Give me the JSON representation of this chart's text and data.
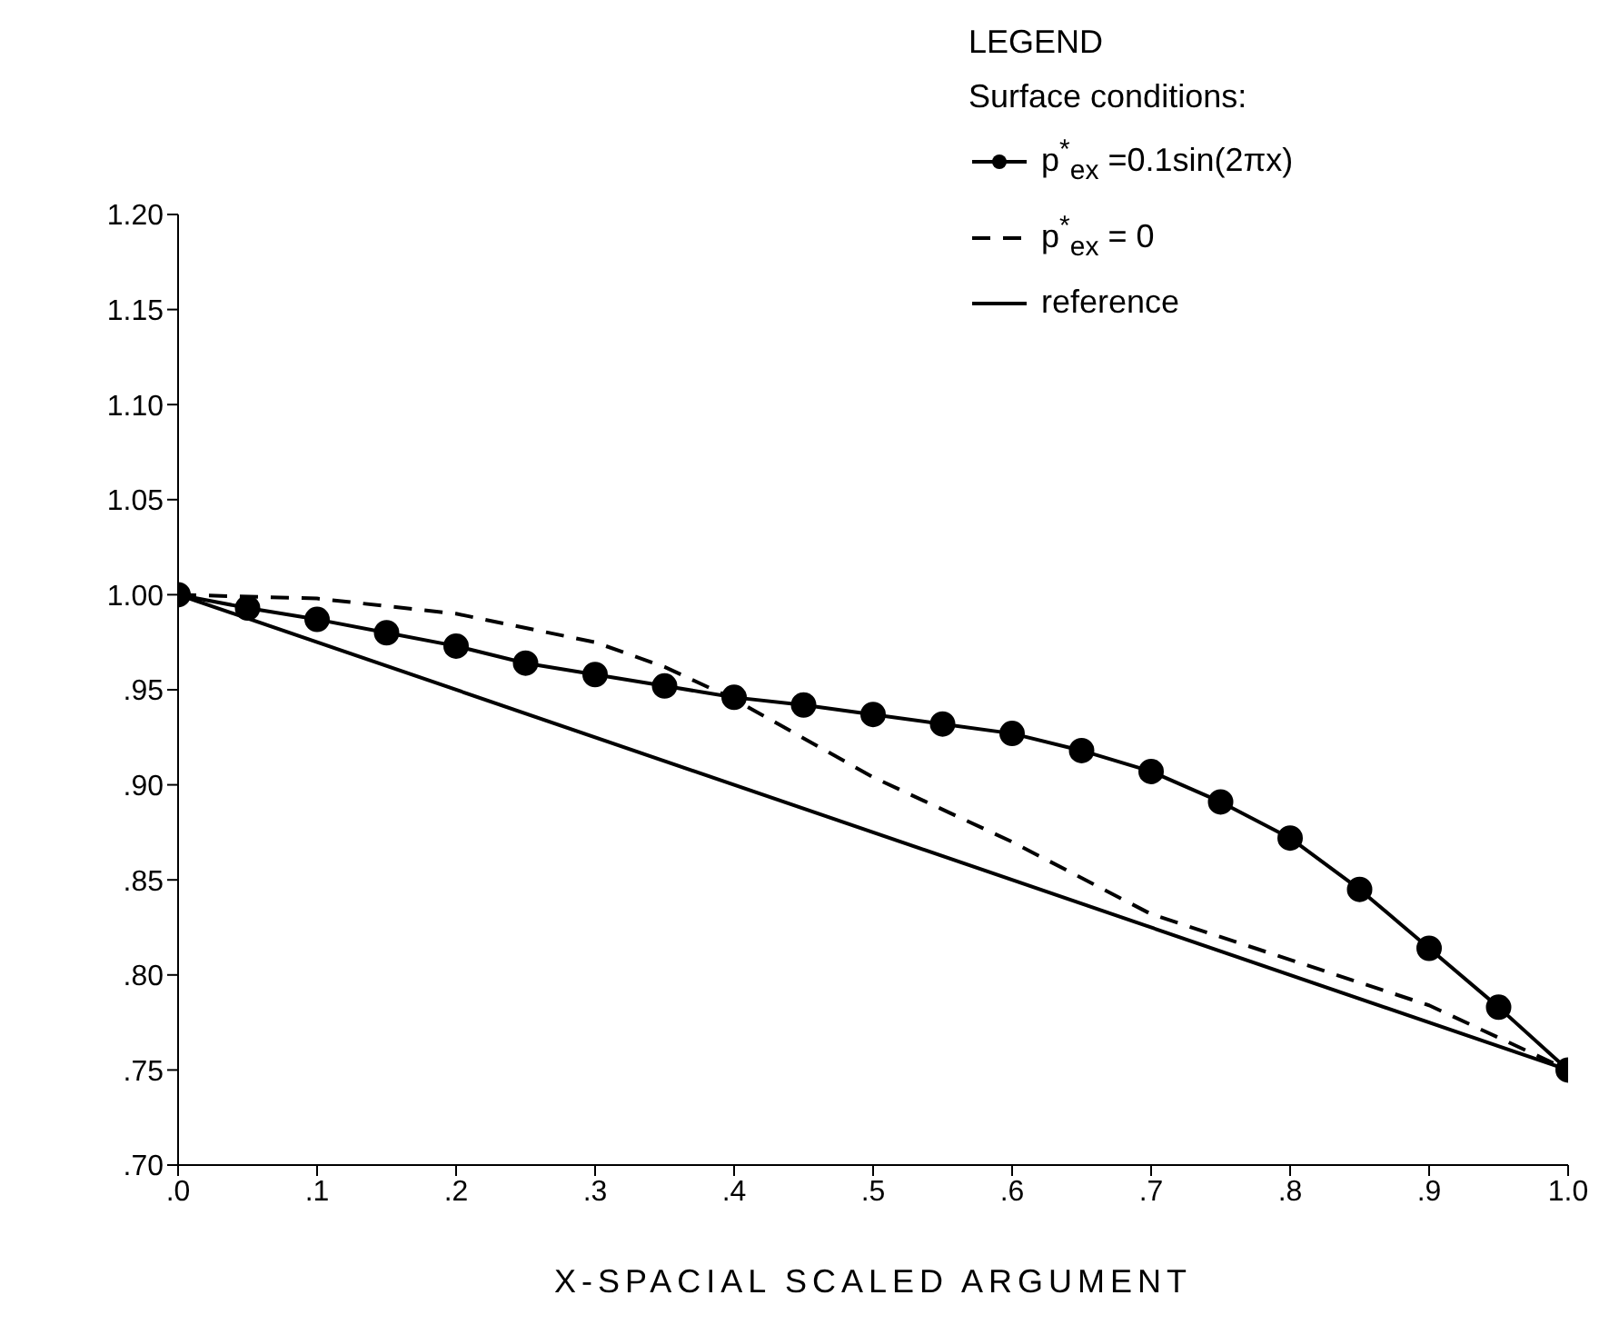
{
  "chart_data": {
    "type": "line",
    "xlabel": "X-SPACIAL SCALED ARGUMENT",
    "legend_title": "Surface conditions:",
    "annotations": [
      "LEGEND"
    ],
    "xlim": [
      0,
      1
    ],
    "ylim": [
      0.7,
      1.2
    ],
    "xticks": [
      {
        "value": 0,
        "label": ".0"
      },
      {
        "value": 0.1,
        "label": ".1"
      },
      {
        "value": 0.2,
        "label": ".2"
      },
      {
        "value": 0.3,
        "label": ".3"
      },
      {
        "value": 0.4,
        "label": ".4"
      },
      {
        "value": 0.5,
        "label": ".5"
      },
      {
        "value": 0.6,
        "label": ".6"
      },
      {
        "value": 0.7,
        "label": ".7"
      },
      {
        "value": 0.8,
        "label": ".8"
      },
      {
        "value": 0.9,
        "label": ".9"
      },
      {
        "value": 1,
        "label": "1.0"
      }
    ],
    "yticks": [
      {
        "value": 0.7,
        "label": ".70"
      },
      {
        "value": 0.75,
        "label": ".75"
      },
      {
        "value": 0.8,
        "label": ".80"
      },
      {
        "value": 0.85,
        "label": ".85"
      },
      {
        "value": 0.9,
        "label": ".90"
      },
      {
        "value": 0.95,
        "label": ".95"
      },
      {
        "value": 1,
        "label": "1.00"
      },
      {
        "value": 1.05,
        "label": "1.05"
      },
      {
        "value": 1.1,
        "label": "1.10"
      },
      {
        "value": 1.15,
        "label": "1.15"
      },
      {
        "value": 1.2,
        "label": "1.20"
      }
    ],
    "legend": "top right",
    "series": [
      {
        "name": "p$^{*}$$_{ex}$ =0.1sin(2πx)",
        "color": "#000000",
        "marker": "circle",
        "line_style": "solid",
        "x": [
          0,
          0.05,
          0.1,
          0.15,
          0.2,
          0.25,
          0.3,
          0.35,
          0.4,
          0.45,
          0.5,
          0.55,
          0.6,
          0.65,
          0.7,
          0.75,
          0.8,
          0.85,
          0.9,
          0.95,
          1
        ],
        "values": [
          1.0,
          0.993,
          0.987,
          0.98,
          0.973,
          0.964,
          0.958,
          0.952,
          0.946,
          0.942,
          0.937,
          0.932,
          0.927,
          0.918,
          0.907,
          0.891,
          0.872,
          0.845,
          0.814,
          0.783,
          0.75
        ]
      },
      {
        "name": "p$^{*}$$_{ex}$ = 0",
        "color": "#000000",
        "marker": "none",
        "line_style": "dashed",
        "x": [
          0,
          0.1,
          0.2,
          0.3,
          0.35,
          0.4,
          0.5,
          0.6,
          0.7,
          0.8,
          0.9,
          1
        ],
        "values": [
          1.0,
          0.998,
          0.99,
          0.975,
          0.962,
          0.945,
          0.904,
          0.87,
          0.832,
          0.808,
          0.784,
          0.75
        ]
      },
      {
        "name": "reference",
        "color": "#000000",
        "marker": "none",
        "line_style": "solid",
        "x": [
          0,
          1
        ],
        "values": [
          1.0,
          0.75
        ]
      }
    ]
  }
}
